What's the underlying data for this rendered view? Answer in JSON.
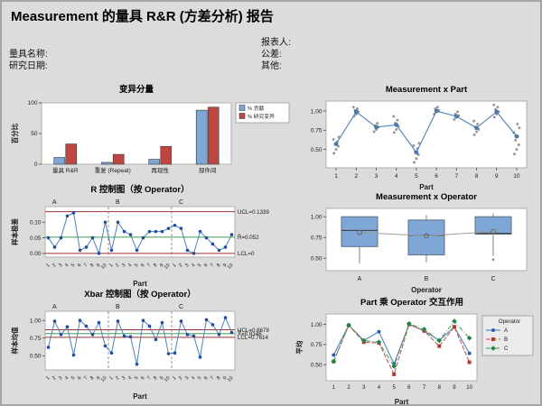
{
  "title": "Measurement 的量具 R&R (方差分析) 报告",
  "header": {
    "left_fields": [
      {
        "label": "量具名称:"
      },
      {
        "label": "研究日期:"
      }
    ],
    "right_fields": [
      {
        "label": "报表人:"
      },
      {
        "label": "公差:"
      },
      {
        "label": "其他:"
      }
    ]
  },
  "colors": {
    "background": "#DCDCDC",
    "plot_bg": "#FFFFFF",
    "bar_blue": "#7FA7D6",
    "bar_red": "#BE4540",
    "limit_line": "#9E3132",
    "center_line": "#3F9E52",
    "point_blue": "#1F4E9C",
    "line_blue": "#4E81B8",
    "gray_point": "#8F8F8F"
  },
  "chart_data": [
    {
      "id": "variation-components",
      "type": "bar",
      "title": "变异分量",
      "ylabel": "百分比",
      "ylim": [
        0,
        100
      ],
      "yticks": [
        0,
        50,
        100
      ],
      "categories": [
        "量具 R&R",
        "重复 (Repeat)",
        "再现性",
        "部件间"
      ],
      "series": [
        {
          "name": "% 贡献",
          "color": "#7FA7D6",
          "values": [
            11,
            3,
            8,
            88
          ]
        },
        {
          "name": "% 研究变异",
          "color": "#BE4540",
          "values": [
            33,
            16,
            29,
            93
          ]
        }
      ],
      "legend_position": "right"
    },
    {
      "id": "r-chart-by-operator",
      "type": "control",
      "title": "R 控制图（按 Operator）",
      "ylabel": "样本极差",
      "xlabel": "Part",
      "ylim": [
        -0.012,
        0.15
      ],
      "yticks": [
        0.0,
        0.05,
        0.1
      ],
      "decimals": 2,
      "groups": [
        "A",
        "B",
        "C"
      ],
      "x_tick_labels": [
        "1",
        "2",
        "3",
        "4",
        "5",
        "6",
        "7",
        "8",
        "9",
        "10"
      ],
      "values": [
        0.05,
        0.02,
        0.05,
        0.12,
        0.13,
        0.01,
        0.02,
        0.05,
        0.0,
        0.1,
        0.01,
        0.1,
        0.07,
        0.06,
        0.01,
        0.05,
        0.07,
        0.07,
        0.07,
        0.08,
        0.09,
        0.08,
        0.01,
        0.0,
        0.07,
        0.05,
        0.03,
        0.01,
        0.02,
        0.06
      ],
      "limits": {
        "ucl": 0.1339,
        "center": 0.052,
        "lcl": 0
      },
      "annotations": [
        {
          "text": "UCL=0.1339",
          "value": 0.1339
        },
        {
          "text": "R̄=0.052",
          "value": 0.052
        },
        {
          "text": "LCL=0",
          "value": 0
        }
      ]
    },
    {
      "id": "xbar-chart-by-operator",
      "type": "control",
      "title": "Xbar 控制图（按 Operator）",
      "ylabel": "样本均值",
      "xlabel": "Part",
      "ylim": [
        0.3,
        1.13
      ],
      "yticks": [
        0.5,
        0.75,
        1.0
      ],
      "decimals": 2,
      "groups": [
        "A",
        "B",
        "C"
      ],
      "x_tick_labels": [
        "1",
        "2",
        "3",
        "4",
        "5",
        "6",
        "7",
        "8",
        "9",
        "10"
      ],
      "values": [
        0.62,
        0.99,
        0.8,
        0.91,
        0.51,
        1.0,
        0.92,
        0.8,
        0.97,
        0.64,
        0.54,
        0.99,
        0.78,
        0.77,
        0.38,
        1.0,
        0.92,
        0.73,
        0.97,
        0.53,
        0.54,
        0.99,
        0.8,
        0.78,
        0.48,
        1.01,
        0.94,
        0.8,
        1.04,
        0.83
      ],
      "limits": {
        "ucl": 0.8678,
        "center": 0.8146,
        "lcl": 0.7614
      },
      "annotations": [
        {
          "text": "UCL=0.8678",
          "value": 0.8678
        },
        {
          "text": "X̿=0.8146",
          "value": 0.8146
        },
        {
          "text": "LCL=0.7614",
          "value": 0.7614
        }
      ]
    },
    {
      "id": "measurement-by-part",
      "type": "scatterline",
      "title": "Measurement x Part",
      "xlabel": "Part",
      "ylim": [
        0.26,
        1.13
      ],
      "yticks": [
        0.5,
        0.75,
        1.0
      ],
      "decimals": 2,
      "x": [
        "1",
        "2",
        "3",
        "4",
        "5",
        "6",
        "7",
        "8",
        "9",
        "10"
      ],
      "means": [
        0.57,
        0.99,
        0.79,
        0.82,
        0.46,
        1.0,
        0.93,
        0.78,
        0.99,
        0.67
      ],
      "points": [
        [
          0.45,
          0.5,
          0.54,
          0.57,
          0.6,
          0.63,
          0.66
        ],
        [
          0.93,
          0.96,
          0.99,
          1.01,
          1.03,
          1.05
        ],
        [
          0.73,
          0.76,
          0.79,
          0.81,
          0.84
        ],
        [
          0.72,
          0.76,
          0.8,
          0.84,
          0.88,
          0.93
        ],
        [
          0.33,
          0.38,
          0.43,
          0.47,
          0.51,
          0.55,
          0.58
        ],
        [
          0.96,
          0.99,
          1.01,
          1.03,
          1.05
        ],
        [
          0.89,
          0.92,
          0.94,
          0.96,
          0.99
        ],
        [
          0.69,
          0.73,
          0.76,
          0.79,
          0.83,
          0.87
        ],
        [
          0.92,
          0.96,
          0.99,
          1.02,
          1.05,
          1.08
        ],
        [
          0.44,
          0.5,
          0.56,
          0.62,
          0.67,
          0.72,
          0.78,
          0.83
        ]
      ]
    },
    {
      "id": "measurement-by-operator",
      "type": "boxplot",
      "title": "Measurement x Operator",
      "xlabel": "Operator",
      "ylim": [
        0.35,
        1.1
      ],
      "yticks": [
        0.5,
        0.75,
        1.0
      ],
      "decimals": 2,
      "categories": [
        "A",
        "B",
        "C"
      ],
      "box_color": "#7FA7D6",
      "boxes": [
        {
          "whisker_low": 0.44,
          "q1": 0.64,
          "median": 0.835,
          "q3": 1.0,
          "whisker_high": 1.0,
          "mean": 0.81,
          "outliers": []
        },
        {
          "whisker_low": 0.45,
          "q1": 0.54,
          "median": 0.775,
          "q3": 0.96,
          "whisker_high": 1.02,
          "mean": 0.77,
          "outliers": []
        },
        {
          "whisker_low": 0.53,
          "q1": 0.79,
          "median": 0.8,
          "q3": 1.0,
          "whisker_high": 1.04,
          "mean": 0.82,
          "outliers": [
            0.46
          ]
        }
      ]
    },
    {
      "id": "part-operator-interaction",
      "type": "interaction",
      "title": "Part 乘 Operator 交互作用",
      "ylabel": "平均",
      "xlabel": "Part",
      "ylim": [
        0.3,
        1.13
      ],
      "yticks": [
        0.5,
        0.75,
        1.0
      ],
      "decimals": 2,
      "x": [
        "1",
        "2",
        "3",
        "4",
        "5",
        "6",
        "7",
        "8",
        "9",
        "10"
      ],
      "legend_title": "Operator",
      "series": [
        {
          "name": "A",
          "marker": "circle",
          "color": "#2B5FAD",
          "line_color": "#5580B8",
          "dash": "",
          "values": [
            0.62,
            0.99,
            0.8,
            0.91,
            0.51,
            1.0,
            0.92,
            0.8,
            0.97,
            0.64
          ]
        },
        {
          "name": "B",
          "marker": "square",
          "color": "#AE3B32",
          "line_color": "#C05B55",
          "dash": "5,2",
          "values": [
            0.54,
            0.99,
            0.78,
            0.77,
            0.38,
            1.0,
            0.92,
            0.73,
            0.97,
            0.53
          ]
        },
        {
          "name": "C",
          "marker": "diamond",
          "color": "#1E8449",
          "line_color": "#4E9E5F",
          "dash": "5,2,1,2",
          "values": [
            0.54,
            0.99,
            0.8,
            0.78,
            0.48,
            1.01,
            0.94,
            0.8,
            1.04,
            0.83
          ]
        }
      ]
    }
  ]
}
